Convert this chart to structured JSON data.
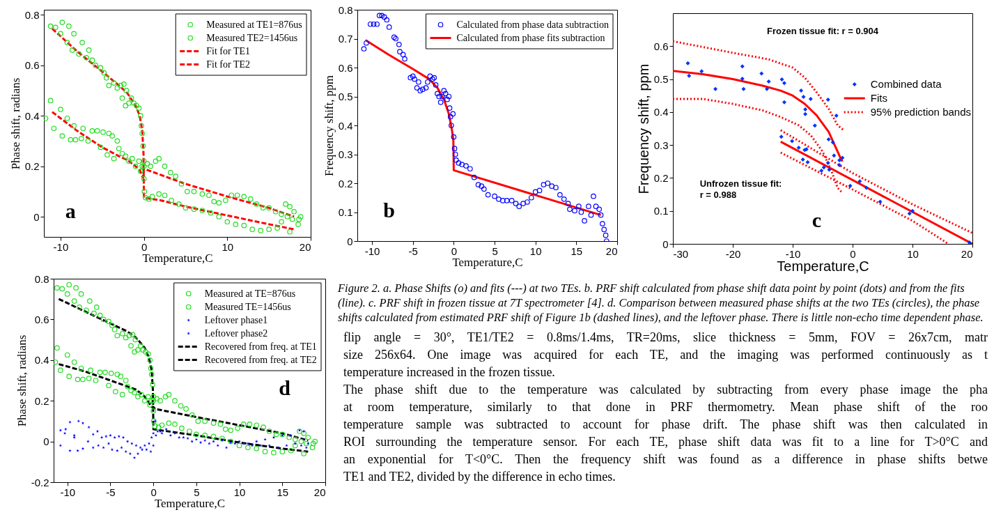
{
  "chart_data": [
    {
      "type": "scatter",
      "xlabel": "Temperature,C",
      "ylabel": "Phase shift, radians",
      "xlim": [
        -12,
        20
      ],
      "xticks": [
        -10,
        0,
        10,
        20
      ],
      "ylim": [
        -0.08,
        0.82
      ],
      "yticks": [
        0,
        0.2,
        0.4,
        0.6,
        0.8
      ],
      "legend": "top right",
      "annotations": [
        "a"
      ],
      "series": [
        {
          "name": "Measured at TE1=876us",
          "type": "scatter",
          "marker": "circle",
          "color": "#22dd22",
          "x": [
            -11.8,
            -11.2,
            -10.8,
            -10,
            -9.8,
            -9.2,
            -8.8,
            -8.4,
            -8.2,
            -7.5,
            -7.3,
            -6.7,
            -6.2,
            -5.6,
            -5.2,
            -4.9,
            -4.4,
            -4.2,
            -3.8,
            -3.6,
            -3.2,
            -3,
            -2.6,
            -2.2,
            -1.8,
            -1.4,
            -1,
            -0.6,
            -0.4,
            -0.2,
            0,
            0.4,
            0.8,
            1.4,
            1.8,
            2.5,
            3.2,
            3.8,
            4.5,
            5.2,
            6,
            7,
            7.8,
            8.4,
            9,
            9.8,
            10.5,
            11.2,
            12,
            12.8,
            13.5,
            14.3,
            15,
            15.8,
            16.5,
            17.2,
            17.8,
            18.5,
            18.8
          ],
          "values": [
            0.39,
            0.46,
            0.35,
            0.425,
            0.32,
            0.39,
            0.305,
            0.36,
            0.305,
            0.31,
            0.35,
            0.3,
            0.34,
            0.34,
            0.275,
            0.335,
            0.245,
            0.33,
            0.32,
            0.23,
            0.3,
            0.27,
            0.25,
            0.24,
            0.22,
            0.23,
            0.2,
            0.22,
            0.18,
            0.2,
            0.22,
            0.21,
            0.2,
            0.22,
            0.23,
            0.2,
            0.175,
            0.16,
            0.13,
            0.1,
            0.1,
            0.09,
            0.085,
            0.06,
            0.055,
            0.065,
            0.085,
            0.085,
            0.08,
            0.07,
            0.05,
            0.035,
            0.035,
            0.02,
            0.01,
            0,
            -0.01,
            -0.03,
            0
          ]
        },
        {
          "name": "Measured TE2=1456us",
          "type": "scatter",
          "marker": "circle",
          "color": "#22dd22",
          "x": [
            -11.2,
            -10.6,
            -10,
            -9.8,
            -9.2,
            -9,
            -8.6,
            -8.4,
            -7.8,
            -7.4,
            -6.9,
            -6.6,
            -6.2,
            -5.8,
            -5.2,
            -4.8,
            -4.5,
            -4.2,
            -3.6,
            -3.2,
            -2.8,
            -2.4,
            -2.1,
            -2.6,
            -2.2,
            -1.8,
            -1.5,
            -1.2,
            -0.9,
            -0.6,
            -0.4,
            -0.3,
            -0.2,
            -0.1,
            0,
            0,
            0.05,
            0.2,
            0.6,
            1,
            1.8,
            2.5,
            3.3,
            4.2,
            5,
            6,
            7,
            8,
            9,
            10,
            11,
            12,
            13,
            14,
            15,
            16,
            16.5,
            17,
            17.5,
            18,
            18.6,
            17.5
          ],
          "values": [
            0.755,
            0.75,
            0.725,
            0.77,
            0.69,
            0.755,
            0.66,
            0.725,
            0.645,
            0.69,
            0.63,
            0.66,
            0.62,
            0.6,
            0.59,
            0.57,
            0.55,
            0.52,
            0.53,
            0.51,
            0.52,
            0.525,
            0.5,
            0.47,
            0.44,
            0.45,
            0.47,
            0.45,
            0.44,
            0.43,
            0.4,
            0.36,
            0.33,
            0.28,
            0.2,
            0.15,
            0.1,
            0.075,
            0.07,
            0.08,
            0.09,
            0.085,
            0.065,
            0.05,
            0.035,
            0.03,
            0.025,
            0.015,
            0,
            -0.02,
            -0.03,
            -0.035,
            -0.05,
            -0.055,
            -0.05,
            -0.045,
            -0.02,
            0.05,
            0.04,
            0.02,
            -0.01,
            -0.06
          ]
        },
        {
          "name": "Fit for TE1",
          "type": "line",
          "line_style": "dashed",
          "color": "#ff0000",
          "x": [
            -11,
            -8,
            -5,
            -3,
            -2,
            -1,
            -0.5,
            -0.2,
            -0.1,
            0,
            5,
            10,
            15,
            18
          ],
          "values": [
            0.415,
            0.34,
            0.275,
            0.24,
            0.225,
            0.2,
            0.185,
            0.16,
            0.155,
            0.19,
            0.13,
            0.08,
            0.035,
            0
          ]
        },
        {
          "name": "Fit for TE2",
          "type": "line",
          "line_style": "dashed",
          "color": "#ff0000",
          "x": [
            -11,
            -8,
            -5,
            -3,
            -2,
            -1,
            -0.5,
            -0.2,
            -0.05,
            0,
            2,
            5,
            10,
            15,
            18
          ],
          "values": [
            0.745,
            0.655,
            0.575,
            0.52,
            0.49,
            0.44,
            0.4,
            0.34,
            0.25,
            0.075,
            0.065,
            0.04,
            0.005,
            -0.03,
            -0.05
          ]
        }
      ]
    },
    {
      "type": "scatter",
      "xlabel": "Temperature,C",
      "ylabel": "Frequency shift, ppm",
      "xlim": [
        -11.8,
        20
      ],
      "xticks": [
        -10,
        -5,
        0,
        5,
        10,
        15,
        20
      ],
      "ylim": [
        0,
        0.8
      ],
      "yticks": [
        0,
        0.1,
        0.2,
        0.3,
        0.4,
        0.5,
        0.6,
        0.7,
        0.8
      ],
      "legend": "top right",
      "annotations": [
        "b"
      ],
      "series": [
        {
          "name": "Calculated from phase data subtraction",
          "type": "scatter",
          "marker": "circle",
          "color": "#0000ff",
          "x": [
            -11,
            -10.7,
            -10.2,
            -9.8,
            -9.4,
            -9.1,
            -8.8,
            -8.5,
            -8.2,
            -7.9,
            -7.3,
            -7.1,
            -6.7,
            -6.6,
            -6.2,
            -6,
            -5.3,
            -5,
            -4.8,
            -4.5,
            -4.3,
            -4.1,
            -3.8,
            -3.4,
            -3.2,
            -2.9,
            -2.6,
            -2.4,
            -2.2,
            -2,
            -1.8,
            -1.6,
            -1.4,
            -1.2,
            -1,
            -0.8,
            -0.6,
            -0.5,
            -0.4,
            -0.3,
            -0.1,
            0,
            0.1,
            0.2,
            0.3,
            0.6,
            1,
            1.5,
            2,
            2.5,
            3,
            3.4,
            3.7,
            4.2,
            5,
            5.5,
            6,
            6.5,
            7.1,
            7.6,
            8,
            8.5,
            9,
            9.5,
            10,
            10.5,
            11,
            11.5,
            12,
            12.5,
            13,
            13.5,
            14,
            14.2,
            14.8,
            15.3,
            15.6,
            16,
            16.5,
            16.8,
            17.1,
            17.4,
            17.8,
            18,
            18.2,
            18.4,
            18.6,
            18.7
          ],
          "values": [
            0.665,
            0.685,
            0.75,
            0.75,
            0.75,
            0.78,
            0.78,
            0.775,
            0.765,
            0.74,
            0.705,
            0.7,
            0.68,
            0.655,
            0.645,
            0.63,
            0.565,
            0.57,
            0.56,
            0.53,
            0.55,
            0.52,
            0.525,
            0.53,
            0.55,
            0.57,
            0.56,
            0.565,
            0.54,
            0.51,
            0.5,
            0.48,
            0.5,
            0.52,
            0.51,
            0.49,
            0.5,
            0.46,
            0.43,
            0.4,
            0.44,
            0.36,
            0.32,
            0.3,
            0.28,
            0.27,
            0.265,
            0.26,
            0.25,
            0.22,
            0.195,
            0.19,
            0.18,
            0.16,
            0.155,
            0.145,
            0.14,
            0.14,
            0.14,
            0.13,
            0.12,
            0.13,
            0.135,
            0.15,
            0.17,
            0.175,
            0.195,
            0.2,
            0.19,
            0.185,
            0.16,
            0.145,
            0.13,
            0.11,
            0.105,
            0.12,
            0.1,
            0.07,
            0.12,
            0.09,
            0.155,
            0.12,
            0.11,
            0.09,
            0.06,
            0.04,
            0.02,
            0
          ]
        },
        {
          "name": "Calculated from phase fits subtraction",
          "type": "line",
          "line_style": "solid",
          "color": "#ff0000",
          "x": [
            -10.8,
            -8,
            -5,
            -3,
            -2,
            -1.2,
            -0.6,
            -0.2,
            -0.05,
            0,
            18
          ],
          "values": [
            0.695,
            0.645,
            0.595,
            0.56,
            0.53,
            0.49,
            0.44,
            0.38,
            0.35,
            0.245,
            0.09
          ]
        }
      ]
    },
    {
      "type": "scatter",
      "xlabel": "Temperature,C",
      "ylabel": "Frequency shift, ppm",
      "xlim": [
        -30,
        20
      ],
      "xticks": [
        -30,
        -20,
        -10,
        0,
        10,
        20
      ],
      "ylim": [
        0,
        0.7
      ],
      "yticks": [
        0,
        0.1,
        0.2,
        0.3,
        0.4,
        0.5,
        0.6
      ],
      "legend": "right",
      "annotations": [
        "Frozen tissue fit: r = 0.904",
        "Unfrozen tissue fit:\n r = 0.988",
        "c"
      ],
      "series": [
        {
          "name": "Combined data",
          "type": "scatter",
          "marker": "diamond",
          "color": "#0033ff",
          "x": [
            -27.5,
            -27.3,
            -25.2,
            -22.9,
            -18.4,
            -18.4,
            -18.2,
            -15.2,
            -14,
            -14.3,
            -11.8,
            -11.4,
            -11.4,
            -8.6,
            -8.2,
            -7,
            -7.9,
            -7.9,
            -6.3,
            -4.1,
            -2.7,
            -4,
            -3.3,
            -3.1,
            -2.2,
            -1.7,
            -2.2,
            -11.9,
            -10.1,
            -9,
            -8,
            -7.7,
            -8.3,
            -7.5,
            -5.2,
            -4.8,
            -4.1,
            -3.9,
            -0.4,
            1.2,
            2.3,
            4.6,
            9.5,
            10,
            19.5
          ],
          "values": [
            0.548,
            0.51,
            0.524,
            0.47,
            0.539,
            0.501,
            0.47,
            0.517,
            0.493,
            0.47,
            0.499,
            0.488,
            0.43,
            0.465,
            0.446,
            0.44,
            0.408,
            0.394,
            0.359,
            0.438,
            0.389,
            0.317,
            0.308,
            0.268,
            0.254,
            0.261,
            0.239,
            0.325,
            0.312,
            0.292,
            0.285,
            0.287,
            0.256,
            0.248,
            0.222,
            0.232,
            0.246,
            0.225,
            0.176,
            0.19,
            0.17,
            0.128,
            0.092,
            0.1,
            0.004
          ]
        },
        {
          "name": "Fits",
          "type": "line",
          "line_style": "solid",
          "color": "#ff0000",
          "x": [
            -30,
            -25,
            -20,
            -15,
            -12,
            -10,
            -8,
            -6,
            -4,
            -3,
            -2,
            -1.7
          ],
          "values": [
            0.525,
            0.515,
            0.5,
            0.48,
            0.465,
            0.45,
            0.425,
            0.39,
            0.34,
            0.3,
            0.26,
            0.25
          ]
        },
        {
          "type": "line",
          "line_style": "solid",
          "color": "#ff0000",
          "x": [
            -12,
            20
          ],
          "values": [
            0.31,
            0
          ]
        },
        {
          "name": "95% prediction bands",
          "type": "line",
          "line_style": "dotted",
          "color": "#ff0000",
          "x": [
            -30,
            -20,
            -14,
            -10,
            -8,
            -6,
            -4,
            -2.5,
            -1.5
          ],
          "values": [
            0.615,
            0.58,
            0.56,
            0.535,
            0.505,
            0.46,
            0.41,
            0.36,
            0.345
          ]
        },
        {
          "type": "line",
          "line_style": "dotted",
          "color": "#ff0000",
          "x": [
            -30,
            -25,
            -20,
            -15,
            -12,
            -9,
            -7,
            -5,
            -3.5,
            -2.5,
            -1.7
          ],
          "values": [
            0.44,
            0.44,
            0.425,
            0.405,
            0.385,
            0.36,
            0.33,
            0.28,
            0.22,
            0.17,
            0.155
          ]
        },
        {
          "type": "line",
          "line_style": "dotted",
          "color": "#ff0000",
          "x": [
            -12,
            0,
            10,
            20
          ],
          "values": [
            0.345,
            0.215,
            0.12,
            0.033
          ]
        },
        {
          "type": "line",
          "line_style": "dotted",
          "color": "#ff0000",
          "x": [
            -12,
            0,
            10,
            16
          ],
          "values": [
            0.277,
            0.165,
            0.07,
            0
          ]
        }
      ]
    },
    {
      "type": "scatter",
      "xlabel": "Temperature,C",
      "ylabel": "Phase shift, radians",
      "xlim": [
        -11.6,
        20
      ],
      "xticks": [
        -10,
        -5,
        0,
        5,
        10,
        15,
        20
      ],
      "ylim": [
        -0.2,
        0.8
      ],
      "yticks": [
        -0.2,
        0,
        0.2,
        0.4,
        0.6,
        0.8
      ],
      "legend": "top right",
      "annotations": [
        "d"
      ],
      "series": [
        {
          "name": "Measured at TE=876us",
          "type": "scatter",
          "marker": "circle",
          "color": "#22dd22",
          "x": [
            -11.4,
            -11.2,
            -10.8,
            -10,
            -9.8,
            -9.2,
            -8.8,
            -8.4,
            -8.2,
            -7.5,
            -7.3,
            -6.7,
            -6.2,
            -5.6,
            -5.2,
            -4.9,
            -4.4,
            -4.2,
            -3.8,
            -3.6,
            -3.2,
            -3,
            -2.6,
            -2.2,
            -1.8,
            -1.4,
            -1,
            -0.6,
            -0.4,
            -0.2,
            0,
            0.4,
            0.8,
            1.4,
            1.8,
            2.5,
            3.2,
            3.8,
            4.5,
            5.2,
            6,
            7,
            7.8,
            8.4,
            9,
            9.8,
            10.5,
            11.2,
            12,
            12.8,
            13.5,
            14.3,
            15,
            15.8,
            16.5,
            17.2,
            17.8,
            18.5,
            18.8
          ],
          "values": [
            0.39,
            0.46,
            0.35,
            0.425,
            0.32,
            0.39,
            0.305,
            0.36,
            0.305,
            0.31,
            0.35,
            0.3,
            0.34,
            0.34,
            0.275,
            0.335,
            0.245,
            0.33,
            0.32,
            0.23,
            0.3,
            0.27,
            0.25,
            0.24,
            0.22,
            0.23,
            0.2,
            0.22,
            0.18,
            0.2,
            0.22,
            0.21,
            0.2,
            0.22,
            0.23,
            0.2,
            0.175,
            0.16,
            0.13,
            0.1,
            0.1,
            0.09,
            0.085,
            0.06,
            0.055,
            0.065,
            0.085,
            0.085,
            0.08,
            0.07,
            0.05,
            0.035,
            0.035,
            0.02,
            0.01,
            0,
            -0.01,
            -0.03,
            0
          ]
        },
        {
          "name": "Measured TE=1456us",
          "type": "scatter",
          "marker": "circle",
          "color": "#22dd22",
          "x": [
            -11.2,
            -10.6,
            -10,
            -9.8,
            -9.2,
            -9,
            -8.6,
            -8.4,
            -7.8,
            -7.4,
            -6.9,
            -6.6,
            -6.2,
            -5.8,
            -5.2,
            -4.8,
            -4.5,
            -4.2,
            -3.6,
            -3.2,
            -2.8,
            -2.4,
            -2.1,
            -2.6,
            -2.2,
            -1.8,
            -1.5,
            -1.2,
            -0.9,
            -0.6,
            -0.4,
            -0.3,
            -0.2,
            -0.1,
            0,
            0,
            0.05,
            0.2,
            0.6,
            1,
            1.8,
            2.5,
            3.3,
            4.2,
            5,
            6,
            7,
            8,
            9,
            10,
            11,
            12,
            13,
            14,
            15,
            16,
            16.5,
            17,
            17.5,
            18,
            18.6,
            17.5
          ],
          "values": [
            0.755,
            0.75,
            0.725,
            0.77,
            0.69,
            0.755,
            0.66,
            0.725,
            0.645,
            0.69,
            0.63,
            0.66,
            0.62,
            0.6,
            0.59,
            0.57,
            0.55,
            0.52,
            0.53,
            0.51,
            0.52,
            0.525,
            0.5,
            0.47,
            0.44,
            0.45,
            0.47,
            0.45,
            0.44,
            0.43,
            0.4,
            0.36,
            0.33,
            0.28,
            0.2,
            0.15,
            0.1,
            0.075,
            0.07,
            0.08,
            0.09,
            0.085,
            0.065,
            0.05,
            0.035,
            0.03,
            0.025,
            0.015,
            0,
            -0.02,
            -0.03,
            -0.035,
            -0.05,
            -0.055,
            -0.05,
            -0.045,
            -0.02,
            0.05,
            0.04,
            0.02,
            -0.01,
            -0.06
          ]
        },
        {
          "name": "Leftover phase1",
          "type": "scatter",
          "marker": "star",
          "color": "#0000ff",
          "x": [
            -10.8,
            -10.2,
            -9.7,
            -9.2,
            -8.7,
            -8.2,
            -7.5,
            -7,
            -6.5,
            -6,
            -5.5,
            -5,
            -4.5,
            -4,
            -3.5,
            -3,
            -2.5,
            -2,
            -1.5,
            -1,
            -0.5,
            -0.2,
            0,
            0.2,
            0.5,
            1,
            2,
            3,
            4,
            5,
            6,
            7,
            8,
            9,
            10,
            11,
            12,
            13,
            14,
            15,
            16,
            17,
            17.5,
            18
          ],
          "values": [
            0.055,
            0.06,
            0.095,
            0.03,
            0.1,
            0.09,
            0.07,
            0.035,
            0.05,
            0.02,
            0.025,
            0.03,
            0.02,
            0.025,
            0.02,
            0,
            -0.01,
            -0.02,
            -0.03,
            -0.02,
            -0.01,
            0.02,
            0.04,
            0.1,
            0.05,
            0.04,
            0.03,
            0.02,
            0.015,
            0.01,
            0.005,
            0,
            0.005,
            -0.005,
            0,
            -0.01,
            0,
            0.01,
            0.02,
            0.03,
            0.03,
            0.055,
            0.05,
            -0.01
          ]
        },
        {
          "name": "Leftover phase2",
          "type": "scatter",
          "marker": "star",
          "color": "#0000ff",
          "x": [
            -10.8,
            -10.3,
            -9.7,
            -9.2,
            -8.8,
            -8.2,
            -7.6,
            -7,
            -6.4,
            -5.8,
            -5.2,
            -4.8,
            -4.2,
            -3.7,
            -3.2,
            -2.7,
            -2.2,
            -1.8,
            -1.3,
            -0.8,
            -0.3,
            0,
            0.3,
            0.8,
            1.5,
            2.5,
            3.5,
            4.5,
            5.5,
            6.5,
            7.5,
            8.5,
            9.5,
            10.5,
            11.5,
            12.5,
            13.5,
            14.5,
            15.5,
            16.5,
            17.2,
            17.8
          ],
          "values": [
            -0.02,
            0.04,
            -0.045,
            0.02,
            -0.045,
            -0.035,
            0,
            -0.03,
            -0.02,
            -0.03,
            -0.01,
            -0.04,
            -0.045,
            -0.03,
            -0.05,
            -0.06,
            -0.08,
            -0.06,
            -0.04,
            -0.04,
            -0.05,
            -0.02,
            0.03,
            0.05,
            0.06,
            0.04,
            0.02,
            0,
            -0.005,
            -0.01,
            -0.02,
            -0.03,
            -0.01,
            -0.01,
            -0.02,
            -0.02,
            -0.02,
            -0.03,
            -0.02,
            -0.01,
            -0.02,
            -0.03
          ]
        },
        {
          "name": "Recovered from freq. at TE1",
          "type": "line",
          "line_style": "dashed",
          "color": "#000000",
          "x": [
            -11,
            -8,
            -5,
            -3,
            -2,
            -1,
            -0.5,
            -0.2,
            -0.05,
            0,
            5,
            10,
            15,
            18
          ],
          "values": [
            0.7,
            0.64,
            0.58,
            0.54,
            0.51,
            0.46,
            0.41,
            0.35,
            0.25,
            0.06,
            0.03,
            -0.005,
            -0.035,
            -0.05
          ]
        },
        {
          "name": "Recovered from freq. at TE2",
          "type": "line",
          "line_style": "dashed",
          "color": "#000000",
          "x": [
            -11,
            -8,
            -5,
            -3,
            -2,
            -1,
            -0.5,
            -0.2,
            0,
            0.2,
            5,
            10,
            15,
            18
          ],
          "values": [
            0.38,
            0.345,
            0.3,
            0.27,
            0.255,
            0.22,
            0.19,
            0.17,
            0.17,
            0.16,
            0.12,
            0.08,
            0.04,
            0.005
          ]
        }
      ]
    },
    {
      "type": "other",
      "annotations": [
        "Figure 2. a. Phase Shifts (o) and fits (---) at two TEs. b. PRF shift calculated from phase shift data point by point (dots) and from the fits (line). c. PRF shift in frozen tissue at 7T spectrometer [4]. d. Comparison between measured phase shifts at the two TEs (circles), the phase shifts calculated from estimated PRF shift of Figure 1b (dashed lines), and the leftover phase. There is little non-echo time dependent phase.",
        "flip angle = 30°, TE1/TE2 = 0.8ms/1.4ms, TR=20ms, slice thickness = 5mm, FOV = 26x7cm, matr",
        "size 256x64. One image was acquired for each TE, and the imaging was performed continuously as t",
        "temperature increased in the frozen tissue.",
        "The phase shift due to the temperature was calculated by subtracting from every phase image the pha",
        "at room temperature, similarly to that done in PRF thermometry. Mean phase shift of the roo",
        "temperature sample was subtracted to account for phase drift. The phase shift was then calculated in",
        "ROI surrounding the temperature sensor. For each TE, phase shift data was fit to a line for T>0°C and",
        "an exponential for T<0°C. Then the frequency shift was found as a difference in phase shifts betwe",
        "TE1 and TE2, divided by the difference in echo times."
      ]
    }
  ]
}
